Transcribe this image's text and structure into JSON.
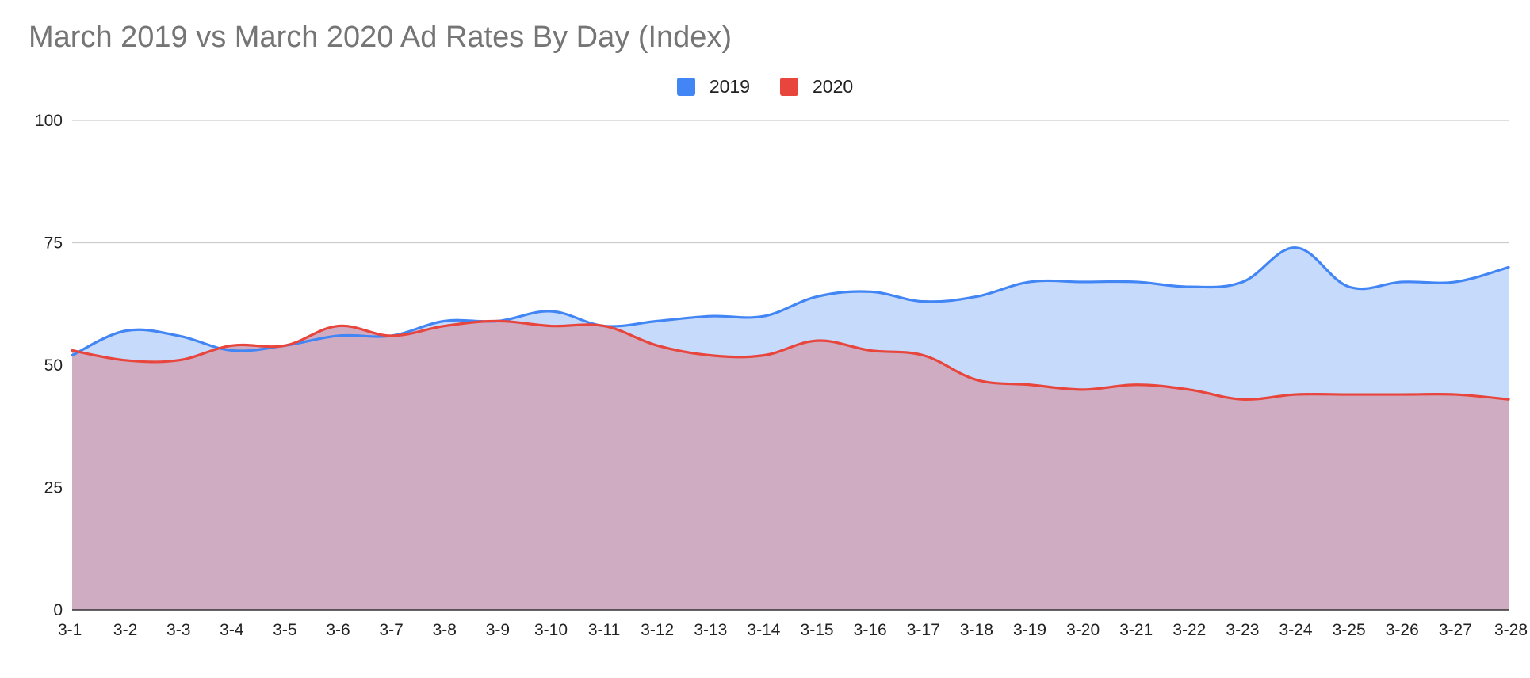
{
  "chart_data": {
    "type": "area",
    "title": "March 2019 vs March 2020 Ad Rates By Day (Index)",
    "xlabel": "",
    "ylabel": "",
    "categories": [
      "3-1",
      "3-2",
      "3-3",
      "3-4",
      "3-5",
      "3-6",
      "3-7",
      "3-8",
      "3-9",
      "3-10",
      "3-11",
      "3-12",
      "3-13",
      "3-14",
      "3-15",
      "3-16",
      "3-17",
      "3-18",
      "3-19",
      "3-20",
      "3-21",
      "3-22",
      "3-23",
      "3-24",
      "3-25",
      "3-26",
      "3-27",
      "3-28"
    ],
    "ylim": [
      0,
      100
    ],
    "yticks": [
      "0",
      "25",
      "50",
      "75",
      "100"
    ],
    "grid": true,
    "legend_position": "top-center",
    "series": [
      {
        "name": "2019",
        "color": "#4285f4",
        "fill": "#c6dafb",
        "values": [
          52,
          57,
          56,
          53,
          54,
          56,
          56,
          59,
          59,
          61,
          58,
          59,
          60,
          60,
          64,
          65,
          63,
          64,
          67,
          67,
          67,
          66,
          67,
          74,
          66,
          67,
          67,
          70
        ]
      },
      {
        "name": "2020",
        "color": "#e8453c",
        "fill": "#cfacc2",
        "values": [
          53,
          51,
          51,
          54,
          54,
          58,
          56,
          58,
          59,
          58,
          58,
          54,
          52,
          52,
          55,
          53,
          52,
          47,
          46,
          45,
          46,
          45,
          43,
          44,
          44,
          44,
          44,
          43
        ]
      }
    ]
  }
}
